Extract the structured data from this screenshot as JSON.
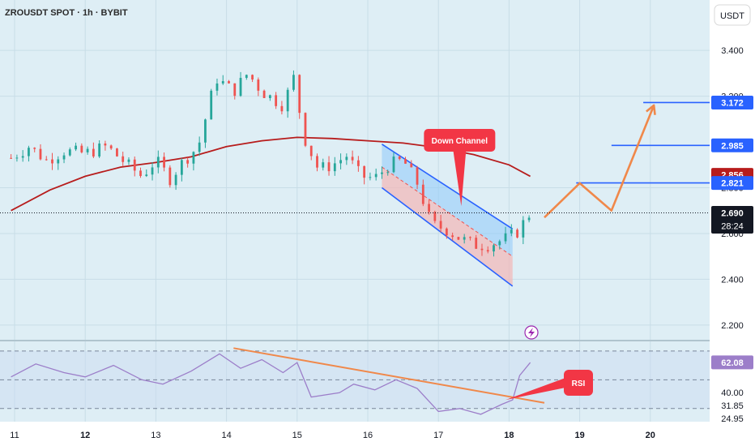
{
  "header": {
    "title": "ZROUSDT SPOT · 1h · BYBIT",
    "currency_button": "USDT"
  },
  "colors": {
    "background": "#deeef5",
    "grid": "#c8dde7",
    "up_candle": "#26a69a",
    "down_candle": "#ef5350",
    "moving_average": "#b71c1c",
    "channel_line": "#2962ff",
    "channel_fill_upper": "#90caf9",
    "channel_fill_lower": "#f4b6b6",
    "projection": "#f0884a",
    "rsi_line": "#9c7ec9",
    "callout": "#f23645",
    "current_price": "#131722",
    "level_marker": "#2962ff",
    "ma_marker": "#b71c1c"
  },
  "chart_data": {
    "type": "candlestick",
    "symbol": "ZROUSDT",
    "timeframe": "1h",
    "exchange": "BYBIT",
    "x_axis_labels": [
      "11",
      "12",
      "13",
      "14",
      "15",
      "16",
      "17",
      "18",
      "19",
      "20"
    ],
    "price_axis": {
      "range": [
        2.15,
        3.62
      ],
      "tick_labels": [
        "3.400",
        "3.200",
        "2.800",
        "2.600",
        "2.400",
        "2.200"
      ]
    },
    "price_markers": [
      {
        "value": "3.172",
        "kind": "level"
      },
      {
        "value": "2.985",
        "kind": "level"
      },
      {
        "value": "2.856",
        "kind": "moving-average"
      },
      {
        "value": "2.821",
        "kind": "level"
      },
      {
        "value": "2.690",
        "kind": "current"
      }
    ],
    "countdown": "28:24",
    "horizontal_levels": [
      3.172,
      2.985,
      2.821
    ],
    "last_close": 2.69,
    "close_path": [
      {
        "day": 10.95,
        "close": 2.93
      },
      {
        "day": 11.2,
        "close": 2.98
      },
      {
        "day": 11.45,
        "close": 2.92
      },
      {
        "day": 11.7,
        "close": 2.96
      },
      {
        "day": 12.0,
        "close": 2.95
      },
      {
        "day": 12.3,
        "close": 2.98
      },
      {
        "day": 12.6,
        "close": 2.9
      },
      {
        "day": 12.8,
        "close": 2.85
      },
      {
        "day": 13.0,
        "close": 2.92
      },
      {
        "day": 13.2,
        "close": 2.84
      },
      {
        "day": 13.4,
        "close": 2.92
      },
      {
        "day": 13.6,
        "close": 2.98
      },
      {
        "day": 13.85,
        "close": 3.28
      },
      {
        "day": 14.1,
        "close": 3.22
      },
      {
        "day": 14.3,
        "close": 3.3
      },
      {
        "day": 14.5,
        "close": 3.22
      },
      {
        "day": 14.8,
        "close": 3.16
      },
      {
        "day": 14.95,
        "close": 3.28
      },
      {
        "day": 15.1,
        "close": 3.02
      },
      {
        "day": 15.3,
        "close": 2.88
      },
      {
        "day": 15.5,
        "close": 2.9
      },
      {
        "day": 15.7,
        "close": 2.94
      },
      {
        "day": 15.9,
        "close": 2.85
      },
      {
        "day": 16.1,
        "close": 2.84
      },
      {
        "day": 16.3,
        "close": 2.9
      },
      {
        "day": 16.5,
        "close": 2.92
      },
      {
        "day": 16.7,
        "close": 2.82
      },
      {
        "day": 16.9,
        "close": 2.64
      },
      {
        "day": 17.1,
        "close": 2.62
      },
      {
        "day": 17.3,
        "close": 2.58
      },
      {
        "day": 17.5,
        "close": 2.55
      },
      {
        "day": 17.7,
        "close": 2.55
      },
      {
        "day": 17.9,
        "close": 2.57
      },
      {
        "day": 18.1,
        "close": 2.6
      },
      {
        "day": 18.3,
        "close": 2.69
      }
    ],
    "moving_average_path": [
      {
        "day": 10.95,
        "value": 2.7
      },
      {
        "day": 11.5,
        "value": 2.79
      },
      {
        "day": 12.0,
        "value": 2.85
      },
      {
        "day": 12.5,
        "value": 2.89
      },
      {
        "day": 13.0,
        "value": 2.91
      },
      {
        "day": 13.5,
        "value": 2.935
      },
      {
        "day": 14.0,
        "value": 2.98
      },
      {
        "day": 14.5,
        "value": 3.005
      },
      {
        "day": 15.0,
        "value": 3.02
      },
      {
        "day": 15.5,
        "value": 3.015
      },
      {
        "day": 16.0,
        "value": 3.005
      },
      {
        "day": 16.5,
        "value": 2.995
      },
      {
        "day": 17.0,
        "value": 2.975
      },
      {
        "day": 17.5,
        "value": 2.945
      },
      {
        "day": 18.0,
        "value": 2.9
      },
      {
        "day": 18.3,
        "value": 2.85
      }
    ],
    "down_channel": {
      "label": "Down Channel",
      "upper_line": [
        {
          "day": 16.2,
          "price": 2.99
        },
        {
          "day": 18.05,
          "price": 2.62
        }
      ],
      "lower_line": [
        {
          "day": 16.2,
          "price": 2.8
        },
        {
          "day": 18.05,
          "price": 2.37
        }
      ],
      "middle_line": [
        {
          "day": 16.2,
          "price": 2.89
        },
        {
          "day": 18.05,
          "price": 2.5
        }
      ]
    },
    "projection_path": [
      {
        "day": 18.5,
        "price": 2.67
      },
      {
        "day": 19.0,
        "price": 2.82
      },
      {
        "day": 19.45,
        "price": 2.7
      },
      {
        "day": 20.05,
        "price": 3.16
      }
    ],
    "rsi": {
      "last_value": "62.08",
      "axis_labels": [
        "40.00",
        "31.85",
        "24.95"
      ],
      "levels": [
        70,
        50,
        30
      ],
      "range": [
        22,
        75
      ],
      "trendline": [
        {
          "day": 14.1,
          "value": 72
        },
        {
          "day": 18.5,
          "value": 34
        }
      ],
      "label": "RSI",
      "path": [
        {
          "day": 10.95,
          "value": 52
        },
        {
          "day": 11.3,
          "value": 61
        },
        {
          "day": 11.7,
          "value": 55
        },
        {
          "day": 12.0,
          "value": 52
        },
        {
          "day": 12.4,
          "value": 60
        },
        {
          "day": 12.8,
          "value": 50
        },
        {
          "day": 13.1,
          "value": 47
        },
        {
          "day": 13.5,
          "value": 56
        },
        {
          "day": 13.9,
          "value": 68
        },
        {
          "day": 14.2,
          "value": 58
        },
        {
          "day": 14.5,
          "value": 64
        },
        {
          "day": 14.8,
          "value": 55
        },
        {
          "day": 15.0,
          "value": 62
        },
        {
          "day": 15.2,
          "value": 38
        },
        {
          "day": 15.6,
          "value": 41
        },
        {
          "day": 15.8,
          "value": 47
        },
        {
          "day": 16.1,
          "value": 43
        },
        {
          "day": 16.4,
          "value": 50
        },
        {
          "day": 16.7,
          "value": 44
        },
        {
          "day": 17.0,
          "value": 28
        },
        {
          "day": 17.3,
          "value": 30
        },
        {
          "day": 17.6,
          "value": 26
        },
        {
          "day": 17.9,
          "value": 33
        },
        {
          "day": 18.05,
          "value": 36
        },
        {
          "day": 18.15,
          "value": 53
        },
        {
          "day": 18.3,
          "value": 62
        }
      ]
    }
  }
}
